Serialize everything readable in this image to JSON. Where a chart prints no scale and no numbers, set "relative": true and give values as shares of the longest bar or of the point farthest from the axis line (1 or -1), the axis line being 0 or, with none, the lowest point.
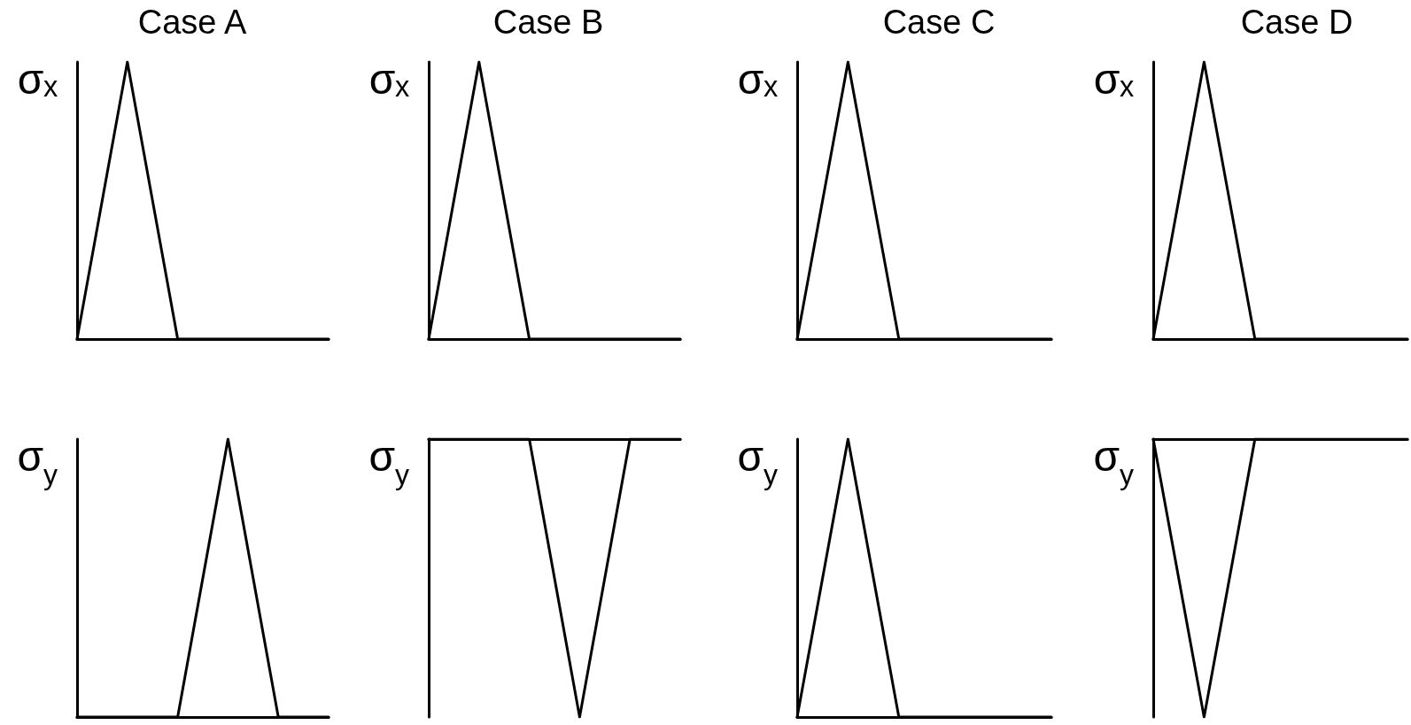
{
  "chart_data": [
    {
      "type": "line",
      "title": "Case A",
      "ylabel": "σₓ",
      "categories": [
        null,
        null,
        null,
        null,
        null,
        null
      ],
      "values": [
        0,
        1,
        0,
        0,
        0,
        0
      ],
      "color": "#000000",
      "relative": true,
      "marker": "none",
      "line_style": "solid"
    },
    {
      "type": "line",
      "title": "Case B",
      "ylabel": "σₓ",
      "categories": [
        null,
        null,
        null,
        null,
        null,
        null
      ],
      "values": [
        0,
        1,
        0,
        0,
        0,
        0
      ],
      "color": "#000000",
      "relative": true,
      "marker": "none",
      "line_style": "solid"
    },
    {
      "type": "line",
      "title": "Case C",
      "ylabel": "σₓ",
      "categories": [
        null,
        null,
        null,
        null,
        null,
        null
      ],
      "values": [
        0,
        1,
        0,
        0,
        0,
        0
      ],
      "color": "#000000",
      "relative": true,
      "marker": "none",
      "line_style": "solid"
    },
    {
      "type": "line",
      "title": "Case D",
      "ylabel": "σₓ",
      "categories": [
        null,
        null,
        null,
        null,
        null,
        null
      ],
      "values": [
        0,
        1,
        0,
        0,
        0,
        0
      ],
      "color": "#000000",
      "relative": true,
      "marker": "none",
      "line_style": "solid"
    },
    {
      "type": "line",
      "ylabel": "σ$_{y}$",
      "categories": [
        null,
        null,
        null,
        null,
        null,
        null
      ],
      "values": [
        0,
        0,
        0,
        1,
        0,
        0
      ],
      "color": "#000000",
      "relative": true,
      "marker": "none",
      "line_style": "solid"
    },
    {
      "type": "line",
      "ylabel": "σ$_{y}$",
      "categories": [
        null,
        null,
        null,
        null,
        null,
        null
      ],
      "values": [
        0,
        0,
        0,
        -1,
        0,
        0
      ],
      "color": "#000000",
      "relative": true,
      "marker": "none",
      "line_style": "solid"
    },
    {
      "type": "line",
      "ylabel": "σ$_{y}$",
      "categories": [
        null,
        null,
        null,
        null,
        null,
        null
      ],
      "values": [
        0,
        1,
        0,
        0,
        0,
        0
      ],
      "color": "#000000",
      "relative": true,
      "marker": "none",
      "line_style": "solid"
    },
    {
      "type": "line",
      "ylabel": "σ$_{y}$",
      "categories": [
        null,
        null,
        null,
        null,
        null,
        null
      ],
      "values": [
        0,
        -1,
        0,
        0,
        0,
        0
      ],
      "color": "#000000",
      "relative": true,
      "marker": "none",
      "line_style": "solid"
    }
  ]
}
